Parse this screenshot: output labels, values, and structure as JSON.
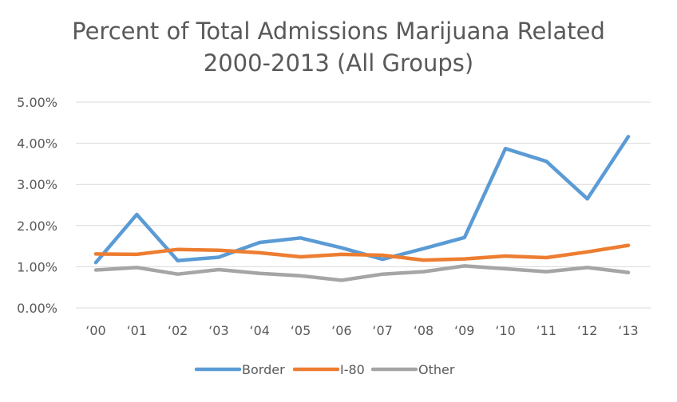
{
  "chart_data": {
    "type": "line",
    "title": "Percent of Total Admissions Marijuana Related",
    "subtitle": "2000-2013 (All Groups)",
    "xlabel": "",
    "ylabel": "",
    "categories": [
      "‘00",
      "‘01",
      "‘02",
      "‘03",
      "‘04",
      "‘05",
      "‘06",
      "‘07",
      "‘08",
      "‘09",
      "‘10",
      "‘11",
      "‘12",
      "‘13"
    ],
    "ylim": [
      0,
      0.05
    ],
    "y_ticks": [
      {
        "value": 0.0,
        "label": "0.00%"
      },
      {
        "value": 0.01,
        "label": "1.00%"
      },
      {
        "value": 0.02,
        "label": "2.00%"
      },
      {
        "value": 0.03,
        "label": "3.00%"
      },
      {
        "value": 0.04,
        "label": "4.00%"
      },
      {
        "value": 0.05,
        "label": "5.00%"
      }
    ],
    "grid": true,
    "legend": "bottom",
    "series": [
      {
        "name": "Border",
        "color": "#5B9BD5",
        "values": [
          0.011,
          0.0227,
          0.0115,
          0.0123,
          0.0159,
          0.017,
          0.0146,
          0.0118,
          0.0144,
          0.0171,
          0.0387,
          0.0356,
          0.0265,
          0.0416
        ]
      },
      {
        "name": "I-80",
        "color": "#ED7D31",
        "values": [
          0.0131,
          0.013,
          0.0142,
          0.014,
          0.0134,
          0.0124,
          0.013,
          0.0128,
          0.0116,
          0.0119,
          0.0126,
          0.0122,
          0.0136,
          0.0152
        ]
      },
      {
        "name": "Other",
        "color": "#A5A5A5",
        "values": [
          0.0092,
          0.0098,
          0.0082,
          0.0093,
          0.0084,
          0.0078,
          0.0067,
          0.0082,
          0.0088,
          0.0102,
          0.0095,
          0.0088,
          0.0098,
          0.0086
        ]
      }
    ]
  }
}
